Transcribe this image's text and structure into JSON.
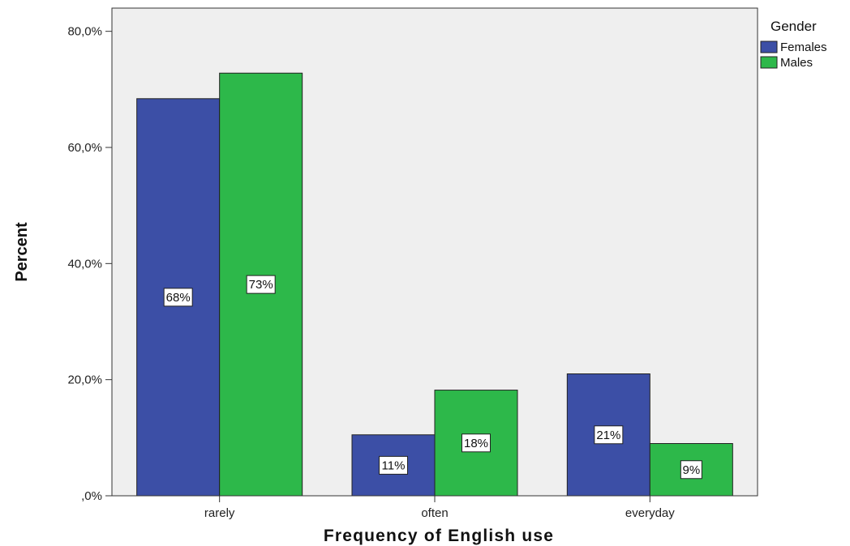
{
  "chart_data": {
    "type": "bar",
    "categories": [
      "rarely",
      "often",
      "everyday"
    ],
    "series": [
      {
        "name": "Females",
        "values": [
          68.4,
          10.5,
          21.0
        ],
        "data_labels": [
          "68%",
          "11%",
          "21%"
        ]
      },
      {
        "name": "Males",
        "values": [
          72.8,
          18.2,
          9.0
        ],
        "data_labels": [
          "73%",
          "18%",
          "9%"
        ]
      }
    ],
    "colors": [
      "#3c4fa6",
      "#2db84a"
    ],
    "plot_background": "#efefef",
    "xlabel": "Frequency of English use",
    "ylabel": "Percent",
    "ylim": [
      0,
      84
    ],
    "yticks": [
      0,
      20,
      40,
      60,
      80
    ],
    "ytick_labels": [
      ",0%",
      "20,0%",
      "40,0%",
      "60,0%",
      "80,0%"
    ],
    "grid": false,
    "legend": {
      "title": "Gender",
      "placement": "top-right, outside plot"
    }
  }
}
